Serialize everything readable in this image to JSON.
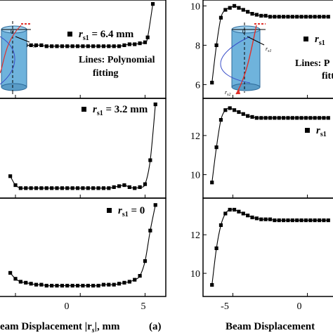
{
  "chart_data": [
    {
      "type": "line",
      "panel": "left-top",
      "legend": {
        "marker": "■",
        "symbol": "r",
        "sub": "s1",
        "text": " = 6.4 mm"
      },
      "annotation": "Lines: Polynomial fitting",
      "x": [
        -5.4,
        -5.0,
        -4.6,
        -4.2,
        -3.8,
        -3.4,
        -3.0,
        -2.6,
        -2.2,
        -1.8,
        -1.4,
        -1.0,
        -0.6,
        -0.2,
        0.2,
        0.6,
        1.0,
        1.4,
        1.8,
        2.2,
        2.6,
        3.0,
        3.4,
        3.8,
        4.2,
        4.6,
        5.0,
        5.2,
        5.6
      ],
      "y": [
        0.7,
        0.58,
        0.56,
        0.54,
        0.54,
        0.54,
        0.54,
        0.53,
        0.53,
        0.53,
        0.53,
        0.53,
        0.53,
        0.53,
        0.53,
        0.53,
        0.53,
        0.53,
        0.53,
        0.53,
        0.53,
        0.53,
        0.54,
        0.55,
        0.55,
        0.56,
        0.57,
        0.62,
        0.96
      ],
      "xlim": [
        -6.3,
        6.6
      ],
      "ylim": [
        0,
        1
      ]
    },
    {
      "type": "line",
      "panel": "left-middle",
      "legend": {
        "marker": "■",
        "symbol": "r",
        "sub": "s1",
        "text": " = 3.2 mm"
      },
      "x": [
        -5.4,
        -5.0,
        -4.6,
        -4.2,
        -3.8,
        -3.4,
        -3.0,
        -2.6,
        -2.2,
        -1.8,
        -1.4,
        -1.0,
        -0.6,
        -0.2,
        0.2,
        0.6,
        1.0,
        1.4,
        1.8,
        2.2,
        2.6,
        3.0,
        3.4,
        3.8,
        4.2,
        4.6,
        5.0,
        5.4,
        5.8
      ],
      "y": [
        0.22,
        0.13,
        0.1,
        0.1,
        0.1,
        0.1,
        0.1,
        0.1,
        0.1,
        0.1,
        0.1,
        0.1,
        0.1,
        0.1,
        0.1,
        0.1,
        0.1,
        0.1,
        0.1,
        0.1,
        0.11,
        0.12,
        0.13,
        0.11,
        0.1,
        0.11,
        0.14,
        0.38,
        0.94
      ],
      "xlim": [
        -6.3,
        6.6
      ],
      "ylim": [
        0,
        1
      ]
    },
    {
      "type": "line",
      "panel": "left-bottom",
      "legend": {
        "marker": "■",
        "symbol": "r",
        "sub": "s1",
        "text": " = 0"
      },
      "x": [
        -5.4,
        -5.0,
        -4.6,
        -4.2,
        -3.8,
        -3.4,
        -3.0,
        -2.6,
        -2.2,
        -1.8,
        -1.4,
        -1.0,
        -0.6,
        -0.2,
        0.2,
        0.6,
        1.0,
        1.4,
        1.8,
        2.2,
        2.6,
        3.0,
        3.4,
        3.8,
        4.2,
        4.6,
        5.0,
        5.4,
        5.8
      ],
      "y": [
        0.24,
        0.18,
        0.15,
        0.14,
        0.13,
        0.12,
        0.12,
        0.11,
        0.11,
        0.11,
        0.11,
        0.11,
        0.11,
        0.11,
        0.11,
        0.11,
        0.11,
        0.11,
        0.12,
        0.12,
        0.12,
        0.13,
        0.14,
        0.15,
        0.17,
        0.21,
        0.36,
        0.67,
        0.93
      ],
      "xlim": [
        -6.3,
        6.6
      ],
      "ylim": [
        0,
        1
      ]
    },
    {
      "type": "line",
      "panel": "right-top",
      "legend": {
        "marker": "■",
        "symbol": "r",
        "sub": "s1",
        "text": ""
      },
      "annotation": "Lines: P",
      "annotation2": "fitt",
      "x": [
        -6.4,
        -6.1,
        -5.8,
        -5.5,
        -5.2,
        -4.9,
        -4.6,
        -4.3,
        -4.0,
        -3.7,
        -3.4,
        -3.1,
        -2.8,
        -2.5,
        -2.2,
        -1.9,
        -1.6,
        -1.3,
        -1.0,
        -0.7,
        -0.4,
        -0.1,
        0.2,
        0.5,
        0.8,
        1.1,
        1.4
      ],
      "y": [
        6.1,
        8.0,
        9.4,
        9.8,
        9.9,
        10.0,
        9.9,
        9.8,
        9.7,
        9.6,
        9.55,
        9.5,
        9.5,
        9.45,
        9.45,
        9.45,
        9.45,
        9.45,
        9.45,
        9.45,
        9.45,
        9.45,
        9.45,
        9.45,
        9.45,
        9.45,
        9.45
      ],
      "xlim": [
        -7.0,
        2.0
      ],
      "ylim": [
        5.3,
        10.3
      ],
      "yticks": [
        6,
        8,
        10
      ]
    },
    {
      "type": "line",
      "panel": "right-middle",
      "legend": {
        "marker": "■",
        "symbol": "r",
        "sub": "s1",
        "text": ""
      },
      "x": [
        -6.4,
        -6.1,
        -5.8,
        -5.5,
        -5.2,
        -4.9,
        -4.6,
        -4.3,
        -4.0,
        -3.7,
        -3.4,
        -3.1,
        -2.8,
        -2.5,
        -2.2,
        -1.9,
        -1.6,
        -1.3,
        -1.0,
        -0.7,
        -0.4,
        -0.1,
        0.2,
        0.5,
        0.8,
        1.1,
        1.4
      ],
      "y": [
        9.6,
        11.4,
        12.8,
        13.3,
        13.4,
        13.3,
        13.2,
        13.1,
        13.0,
        12.95,
        12.9,
        12.9,
        12.9,
        12.9,
        12.9,
        12.9,
        12.9,
        12.9,
        12.9,
        12.9,
        12.9,
        12.9,
        12.9,
        12.9,
        12.9,
        12.9,
        12.9
      ],
      "xlim": [
        -7.0,
        2.0
      ],
      "ylim": [
        8.8,
        13.9
      ],
      "yticks": [
        10,
        12
      ]
    },
    {
      "type": "line",
      "panel": "right-bottom",
      "x": [
        -6.4,
        -6.1,
        -5.8,
        -5.5,
        -5.2,
        -4.9,
        -4.6,
        -4.3,
        -4.0,
        -3.7,
        -3.4,
        -3.1,
        -2.8,
        -2.5,
        -2.2,
        -1.9,
        -1.6,
        -1.3,
        -1.0,
        -0.7,
        -0.4,
        -0.1,
        0.2,
        0.5,
        0.8,
        1.1,
        1.4
      ],
      "y": [
        9.4,
        11.3,
        12.5,
        13.1,
        13.3,
        13.3,
        13.2,
        13.1,
        13.0,
        12.9,
        12.85,
        12.8,
        12.8,
        12.8,
        12.75,
        12.75,
        12.75,
        12.75,
        12.75,
        12.75,
        12.75,
        12.75,
        12.75,
        12.75,
        12.75,
        12.75,
        12.75
      ],
      "xlim": [
        -7.0,
        2.0
      ],
      "ylim": [
        8.8,
        13.9
      ],
      "yticks": [
        10,
        12
      ]
    }
  ],
  "axes": {
    "left_xticks": [
      -5,
      0,
      5
    ],
    "left_xticklabels": [
      "",
      "0",
      "5"
    ],
    "left_xlabel": "eam Displacement |r",
    "left_xlabel_sub": "s",
    "left_xlabel_end": "|, mm",
    "panel_label": "(a)",
    "right_xticks": [
      -5,
      0
    ],
    "right_xticklabels": [
      "-5",
      "0"
    ],
    "right_xlabel": "Beam Displacement"
  },
  "inset": {
    "rs1": "r",
    "rs1_sub": "s1",
    "rs2": "r",
    "rs2_sub": "s2",
    "zero": "0",
    "color_cylinder": "#6fb3dc",
    "color_red": "#e0312b",
    "color_blue": "#3a4fc9"
  }
}
